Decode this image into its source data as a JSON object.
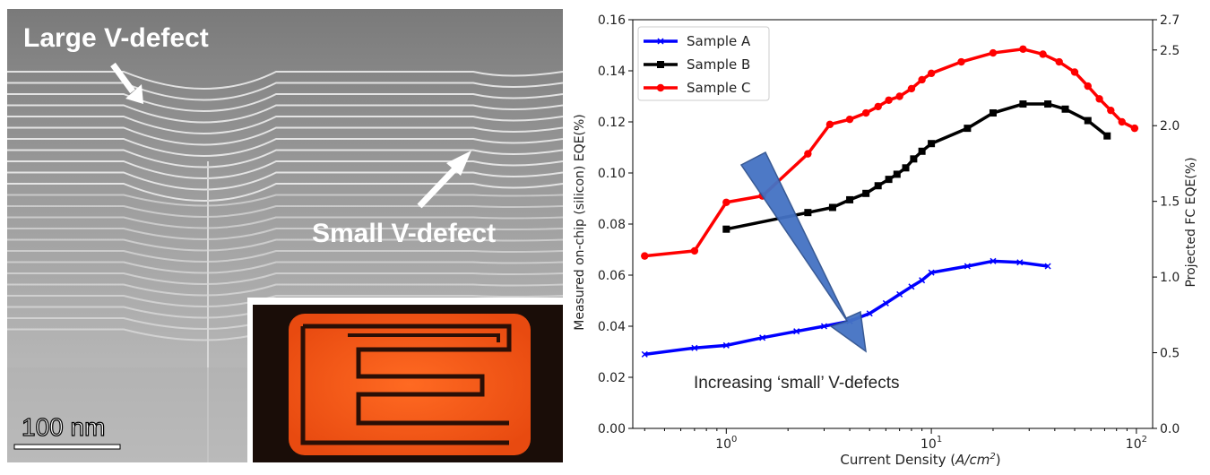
{
  "micrograph": {
    "label_large": "Large V-defect",
    "label_small": "Small V-defect",
    "scale_bar": "100 nm",
    "colors": {
      "background": "#8a8a8a",
      "layer": "#e8e8e8",
      "inset_glow": "#ff5a1a"
    }
  },
  "chart_data": {
    "type": "line",
    "title": "",
    "xlabel": "Current Density (A/cm2)",
    "ylabel_left": "Measured on-chip (silicon) EQE(%)",
    "ylabel_right": "Projected FC EQE(%)",
    "x_scale": "log",
    "xlim": [
      0.35,
      120
    ],
    "ylim_left": [
      0.0,
      0.16
    ],
    "ylim_right": [
      0.0,
      2.7
    ],
    "x_ticks": [
      {
        "v": 1,
        "label": "10^0"
      },
      {
        "v": 10,
        "label": "10^1"
      },
      {
        "v": 100,
        "label": "10^2"
      }
    ],
    "y_ticks_left": [
      "0.00",
      "0.02",
      "0.04",
      "0.06",
      "0.08",
      "0.10",
      "0.12",
      "0.14",
      "0.16"
    ],
    "y_ticks_right": [
      "0.0",
      "0.5",
      "1.0",
      "1.5",
      "2.0",
      "2.5",
      "2.7"
    ],
    "legend_position": "top-left",
    "grid": false,
    "series": [
      {
        "name": "Sample A",
        "color": "#0000ff",
        "marker": "x",
        "x": [
          0.4,
          0.7,
          1.0,
          1.5,
          2.2,
          3.0,
          4.0,
          5.0,
          6.0,
          7.0,
          8.0,
          9.0,
          10.0,
          15.0,
          20.0,
          27.0,
          37.0
        ],
        "y": [
          0.029,
          0.0315,
          0.0325,
          0.0355,
          0.038,
          0.04,
          0.042,
          0.045,
          0.049,
          0.0525,
          0.0555,
          0.058,
          0.061,
          0.0635,
          0.0655,
          0.065,
          0.0635
        ]
      },
      {
        "name": "Sample B",
        "color": "#000000",
        "marker": "square",
        "x": [
          1.0,
          2.5,
          3.3,
          4.0,
          4.8,
          5.5,
          6.2,
          6.8,
          7.5,
          8.2,
          9.0,
          10.0,
          15.0,
          20.0,
          28.0,
          37.0,
          45.0,
          58.0,
          72.0
        ],
        "y": [
          0.078,
          0.0845,
          0.0865,
          0.0895,
          0.092,
          0.095,
          0.0975,
          0.0995,
          0.102,
          0.1055,
          0.1085,
          0.1115,
          0.1175,
          0.1235,
          0.127,
          0.127,
          0.125,
          0.1205,
          0.1145
        ]
      },
      {
        "name": "Sample C",
        "color": "#ff0000",
        "marker": "circle",
        "x": [
          0.4,
          0.7,
          1.0,
          1.5,
          2.5,
          3.2,
          4.0,
          4.8,
          5.5,
          6.2,
          7.0,
          8.0,
          9.0,
          10.0,
          14.0,
          20.0,
          28.0,
          35.0,
          42.0,
          50.0,
          58.0,
          66.0,
          75.0,
          85.0,
          98.0
        ],
        "y": [
          0.0675,
          0.0695,
          0.0885,
          0.091,
          0.1075,
          0.119,
          0.121,
          0.1235,
          0.126,
          0.1285,
          0.13,
          0.133,
          0.1365,
          0.139,
          0.1435,
          0.147,
          0.1485,
          0.1465,
          0.1435,
          0.1395,
          0.134,
          0.129,
          0.1245,
          0.12,
          0.1175
        ]
      }
    ],
    "annotation_text": "Increasing ‘small’ V-defects",
    "arrow_color": "#4472c4"
  }
}
